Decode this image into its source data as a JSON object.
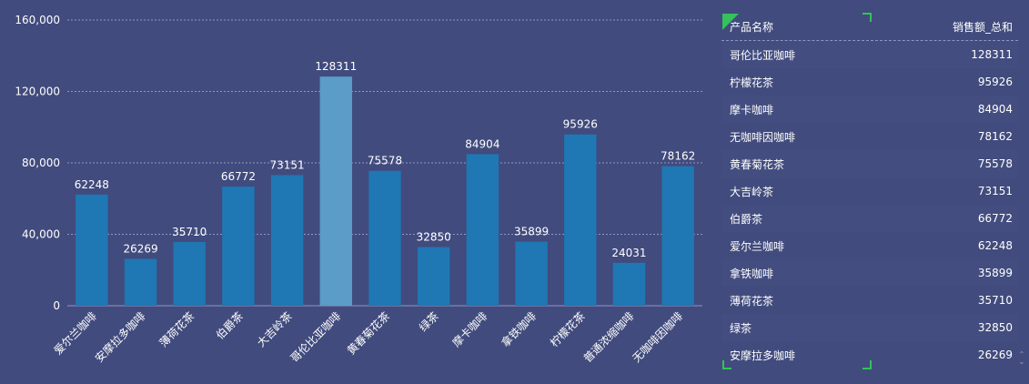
{
  "chart_data": {
    "type": "bar",
    "categories": [
      "爱尔兰咖啡",
      "安摩拉多咖啡",
      "薄荷花茶",
      "伯爵茶",
      "大吉岭茶",
      "哥伦比亚咖啡",
      "黄春菊花茶",
      "绿茶",
      "摩卡咖啡",
      "拿铁咖啡",
      "柠檬花茶",
      "普通浓缩咖啡",
      "无咖啡因咖啡"
    ],
    "values": [
      62248,
      26269,
      35710,
      66772,
      73151,
      128311,
      75578,
      32850,
      84904,
      35899,
      95926,
      24031,
      78162
    ],
    "highlighted_index": 5,
    "ylim": [
      0,
      160000
    ],
    "yticks": [
      "0",
      "40,000",
      "80,000",
      "120,000",
      "160,000"
    ],
    "ytick_values": [
      0,
      40000,
      80000,
      120000,
      160000
    ],
    "grid": true,
    "colors": {
      "bar": "#1f77b4",
      "highlight": "#5b9cc9",
      "grid": "#8f97c2",
      "text": "#ffffff"
    }
  },
  "table": {
    "header": {
      "name": "产品名称",
      "value": "销售额_总和"
    },
    "rows": [
      {
        "name": "哥伦比亚咖啡",
        "value": "128311"
      },
      {
        "name": "柠檬花茶",
        "value": "95926"
      },
      {
        "name": "摩卡咖啡",
        "value": "84904"
      },
      {
        "name": "无咖啡因咖啡",
        "value": "78162"
      },
      {
        "name": "黄春菊花茶",
        "value": "75578"
      },
      {
        "name": "大吉岭茶",
        "value": "73151"
      },
      {
        "name": "伯爵茶",
        "value": "66772"
      },
      {
        "name": "爱尔兰咖啡",
        "value": "62248"
      },
      {
        "name": "拿铁咖啡",
        "value": "35899"
      },
      {
        "name": "薄荷花茶",
        "value": "35710"
      },
      {
        "name": "绿茶",
        "value": "32850"
      },
      {
        "name": "安摩拉多咖啡",
        "value": "26269"
      }
    ]
  }
}
